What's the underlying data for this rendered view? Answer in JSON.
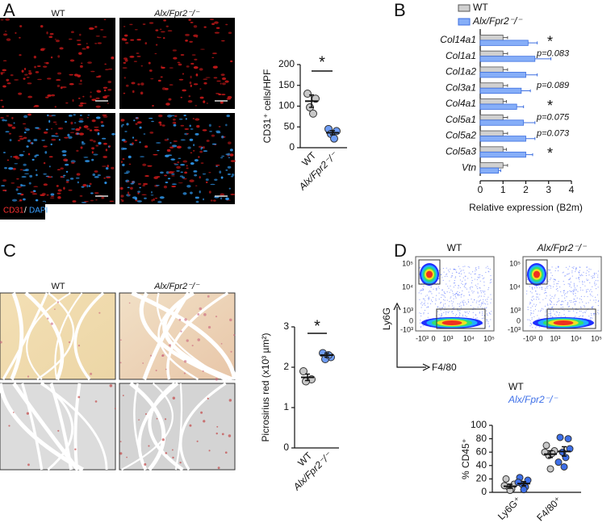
{
  "panels": {
    "A": {
      "letter": "A",
      "columns": [
        "WT",
        "Alx/Fpr2⁻/⁻"
      ],
      "stains": [
        "CD31",
        "/",
        "DAPI"
      ]
    },
    "B": {
      "letter": "B"
    },
    "C": {
      "letter": "C",
      "columns": [
        "WT",
        "Alx/Fpr2⁻/⁻"
      ]
    },
    "D": {
      "letter": "D",
      "flow": {
        "columns": [
          "WT",
          "Alx/Fpr2⁻/⁻"
        ],
        "ylabel": "Ly6G",
        "xlabel": "F4/80",
        "yticks": [
          "10⁵",
          "10⁴",
          "10³",
          "0",
          "-10³"
        ],
        "xticks": [
          "-10³",
          "0",
          "10³",
          "10⁴",
          "10⁵"
        ]
      }
    }
  },
  "chart_data": [
    {
      "type": "dot",
      "ylabel": "CD31⁺ cells/HPF",
      "categories": [
        "WT",
        "Alx/Fpr2⁻/⁻"
      ],
      "series": [
        {
          "color": "#c8c8c8",
          "points": [
            [
              130,
              118,
              97,
              82
            ],
            null
          ],
          "means": [
            112,
            null
          ],
          "errors": [
            15,
            null
          ]
        },
        {
          "color": "#6e9cf5",
          "points": [
            null,
            [
              45,
              40,
              33,
              22
            ]
          ],
          "means": [
            null,
            36
          ],
          "errors": [
            null,
            5
          ]
        }
      ],
      "ylim": [
        0,
        200
      ],
      "yticks": [
        0,
        50,
        100,
        150,
        200
      ],
      "significance": "*"
    },
    {
      "type": "bar",
      "horizontal": true,
      "xlabel": "Relative expression (B2m)",
      "categories": [
        "Col14a1",
        "Col1a1",
        "Col1a2",
        "Col3a1",
        "Col4a1",
        "Col5a1",
        "Col5a2",
        "Col5a3",
        "Vtn"
      ],
      "series": [
        {
          "name": "WT",
          "color": "#d0d0d0",
          "values": [
            1,
            1,
            1,
            1,
            1,
            1,
            1,
            1,
            1
          ],
          "errors": [
            0.2,
            0.2,
            0.2,
            0.2,
            0.15,
            0.2,
            0.2,
            0.15,
            0.2
          ]
        },
        {
          "name": "Alx/Fpr2⁻/⁻",
          "color": "#86aef8",
          "values": [
            2.1,
            2.4,
            2.0,
            1.8,
            1.6,
            1.9,
            2.0,
            2.0,
            0.8
          ],
          "errors": [
            0.4,
            0.7,
            0.5,
            0.4,
            0.3,
            0.5,
            0.4,
            0.3,
            0.1
          ]
        }
      ],
      "annotations": [
        {
          "index": 0,
          "text": "*"
        },
        {
          "index": 1,
          "text": "p=0.083"
        },
        {
          "index": 3,
          "text": "p=0.089"
        },
        {
          "index": 4,
          "text": "*"
        },
        {
          "index": 5,
          "text": "p=0.075"
        },
        {
          "index": 6,
          "text": "p=0.073"
        },
        {
          "index": 7,
          "text": "*"
        }
      ],
      "xlim": [
        0,
        4
      ],
      "xticks": [
        0,
        1,
        2,
        3,
        4
      ]
    },
    {
      "type": "dot",
      "ylabel": "Picrosirius red (x10³ µm²)",
      "categories": [
        "WT",
        "Alx/Fpr2⁻/⁻"
      ],
      "series": [
        {
          "color": "#c8c8c8",
          "points": [
            [
              1.9,
              1.7,
              1.65
            ],
            null
          ],
          "means": [
            1.75,
            null
          ],
          "errors": [
            0.08,
            null
          ]
        },
        {
          "color": "#6e9cf5",
          "points": [
            null,
            [
              2.35,
              2.25,
              2.2,
              2.3
            ]
          ],
          "means": [
            null,
            2.3
          ],
          "errors": [
            null,
            0.05
          ]
        }
      ],
      "ylim": [
        0,
        3
      ],
      "yticks": [
        0,
        1,
        2,
        3
      ],
      "significance": "*"
    },
    {
      "type": "dot",
      "ylabel": "% CD45⁺",
      "categories": [
        "Ly6G⁺",
        "F4/80⁺"
      ],
      "series": [
        {
          "name": "WT",
          "color": "#c8c8c8",
          "points": [
            [
              20,
              12,
              8,
              5,
              3,
              10
            ],
            [
              70,
              62,
              55,
              58,
              35,
              60
            ]
          ],
          "means": [
            9,
            57
          ],
          "errors": [
            3,
            5
          ]
        },
        {
          "name": "Alx/Fpr2⁻/⁻",
          "color": "#3d6fe8",
          "points": [
            [
              22,
              18,
              12,
              8,
              4,
              15
            ],
            [
              82,
              80,
              60,
              52,
              38,
              45,
              65
            ]
          ],
          "means": [
            13,
            61
          ],
          "errors": [
            3,
            7
          ]
        }
      ],
      "ylim": [
        0,
        100
      ],
      "yticks": [
        0,
        20,
        40,
        60,
        80,
        100
      ]
    }
  ]
}
